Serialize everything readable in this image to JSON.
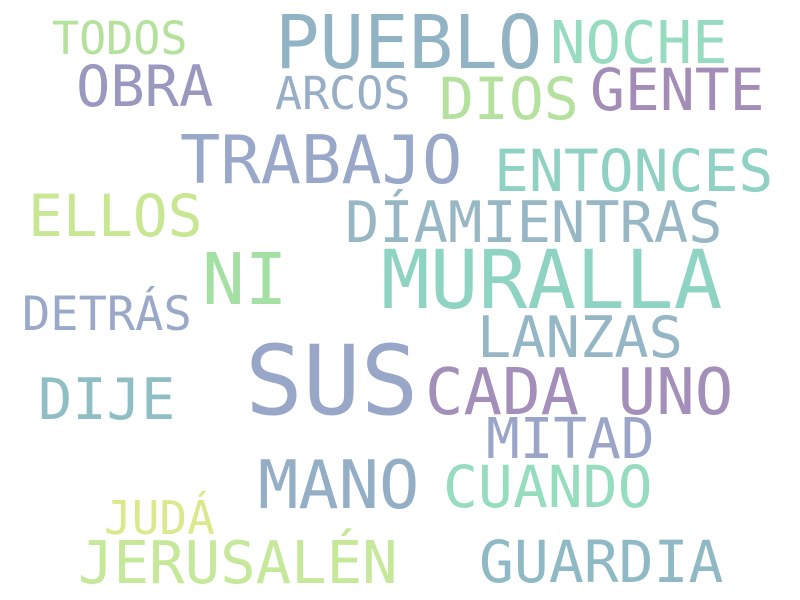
{
  "words": [
    {
      "text": "TODOS",
      "color": "#b4e29d"
    },
    {
      "text": "PUEBLO",
      "color": "#92b3c3"
    },
    {
      "text": "NOCHE",
      "color": "#97dcc0"
    },
    {
      "text": "OBRA",
      "color": "#9b98c0"
    },
    {
      "text": "ARCOS",
      "color": "#98aec6"
    },
    {
      "text": "DIOS",
      "color": "#b4e19d"
    },
    {
      "text": "GENTE",
      "color": "#a38db7"
    },
    {
      "text": "TRABAJO",
      "color": "#99a8c8"
    },
    {
      "text": "ENTONCES",
      "color": "#8fd1c3"
    },
    {
      "text": "ELLOS",
      "color": "#c8e793"
    },
    {
      "text": "DÍAMIENTRAS",
      "color": "#98b7c5"
    },
    {
      "text": "NI",
      "color": "#a4e0a4"
    },
    {
      "text": "MURALLA",
      "color": "#8fd3c2"
    },
    {
      "text": "DETRÁS",
      "color": "#9aa9c8"
    },
    {
      "text": "LANZAS",
      "color": "#95b6c5"
    },
    {
      "text": "SUS",
      "color": "#98a6c8"
    },
    {
      "text": "CADA UNO",
      "color": "#a38fb9"
    },
    {
      "text": "DIJE",
      "color": "#8fbfc4"
    },
    {
      "text": "MITAD",
      "color": "#9aa5c7"
    },
    {
      "text": "MANO",
      "color": "#93aec5"
    },
    {
      "text": "CUANDO",
      "color": "#96dcbf"
    },
    {
      "text": "JUDÁ",
      "color": "#dbe88b"
    },
    {
      "text": "JERUSALÉN",
      "color": "#c6e89a"
    },
    {
      "text": "GUARDIA",
      "color": "#8fb9c4"
    }
  ]
}
